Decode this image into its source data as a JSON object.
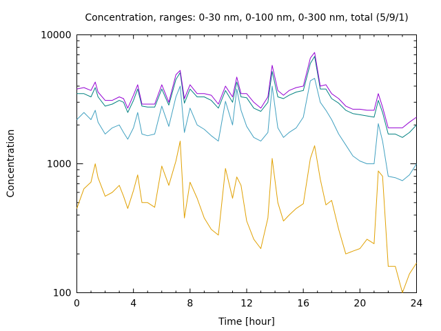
{
  "chart_data": {
    "type": "line",
    "title": "Concentration, ranges: 0-30 nm, 0-100 nm, 0-300 nm, total (5/9/1)",
    "xlabel": "Time [hour]",
    "ylabel": "Concentration",
    "xlim": [
      0,
      24
    ],
    "ylim": [
      100,
      10000
    ],
    "yscale": "log",
    "grid": false,
    "legend": "none",
    "x_ticks": [
      0,
      4,
      8,
      12,
      16,
      20,
      24
    ],
    "x_tick_labels": [
      "0",
      "4",
      "8",
      "12",
      "16",
      "20",
      "24"
    ],
    "y_ticks": [
      100,
      1000,
      10000
    ],
    "y_tick_labels": [
      "100",
      "1000",
      "10000"
    ],
    "x": [
      0,
      0.5,
      1,
      1.3,
      1.5,
      2,
      2.5,
      3,
      3.3,
      3.6,
      4,
      4.3,
      4.6,
      5,
      5.5,
      6,
      6.5,
      7,
      7.3,
      7.6,
      8,
      8.5,
      9,
      9.5,
      10,
      10.5,
      11,
      11.3,
      11.6,
      12,
      12.5,
      13,
      13.5,
      13.8,
      14.2,
      14.6,
      15,
      15.5,
      16,
      16.5,
      16.8,
      17.2,
      17.6,
      18,
      18.5,
      19,
      19.5,
      20,
      20.5,
      21,
      21.3,
      21.6,
      22,
      22.5,
      23,
      23.5,
      24
    ],
    "series": [
      {
        "color": "#e0a000",
        "values": [
          450,
          640,
          720,
          1000,
          780,
          560,
          600,
          680,
          560,
          450,
          620,
          820,
          500,
          500,
          460,
          960,
          680,
          1050,
          1500,
          380,
          720,
          540,
          380,
          310,
          280,
          920,
          540,
          790,
          680,
          360,
          260,
          220,
          380,
          1100,
          500,
          360,
          400,
          450,
          490,
          1100,
          1380,
          760,
          480,
          520,
          310,
          200,
          210,
          220,
          260,
          240,
          880,
          800,
          160,
          160,
          100,
          140,
          170
        ]
      },
      {
        "color": "#40a0c0",
        "values": [
          2200,
          2500,
          2200,
          2600,
          2100,
          1700,
          1900,
          2000,
          1750,
          1550,
          1900,
          2500,
          1700,
          1650,
          1700,
          2800,
          1950,
          3300,
          4000,
          1750,
          2700,
          2000,
          1850,
          1650,
          1500,
          3050,
          2000,
          3800,
          2600,
          1950,
          1600,
          1500,
          1750,
          4000,
          1900,
          1600,
          1750,
          1900,
          2300,
          4400,
          4600,
          3000,
          2600,
          2200,
          1700,
          1400,
          1150,
          1050,
          1000,
          1000,
          2050,
          1500,
          800,
          780,
          740,
          820,
          1000
        ]
      },
      {
        "color": "#008080",
        "values": [
          3500,
          3500,
          3300,
          3900,
          3300,
          2800,
          2900,
          3100,
          3000,
          2500,
          3100,
          3800,
          2800,
          2750,
          2750,
          3800,
          2850,
          4500,
          5100,
          2950,
          3800,
          3300,
          3300,
          3100,
          2700,
          3700,
          3000,
          4300,
          3300,
          3250,
          2700,
          2550,
          3000,
          5200,
          3300,
          3200,
          3400,
          3600,
          3700,
          6000,
          6800,
          3800,
          3800,
          3200,
          2950,
          2600,
          2450,
          2400,
          2350,
          2300,
          3100,
          2500,
          1700,
          1700,
          1600,
          1750,
          2000
        ]
      },
      {
        "color": "#9400d3",
        "values": [
          3800,
          3900,
          3700,
          4300,
          3600,
          3100,
          3100,
          3300,
          3200,
          2700,
          3400,
          4100,
          2900,
          2900,
          2900,
          4100,
          3000,
          4900,
          5300,
          3200,
          4100,
          3500,
          3500,
          3400,
          2900,
          4000,
          3300,
          4700,
          3500,
          3500,
          3000,
          2700,
          3300,
          5800,
          3700,
          3400,
          3700,
          3900,
          4000,
          6600,
          7300,
          4000,
          4100,
          3500,
          3200,
          2800,
          2650,
          2650,
          2600,
          2600,
          3500,
          2750,
          1900,
          1900,
          1900,
          2100,
          2300
        ]
      }
    ]
  }
}
